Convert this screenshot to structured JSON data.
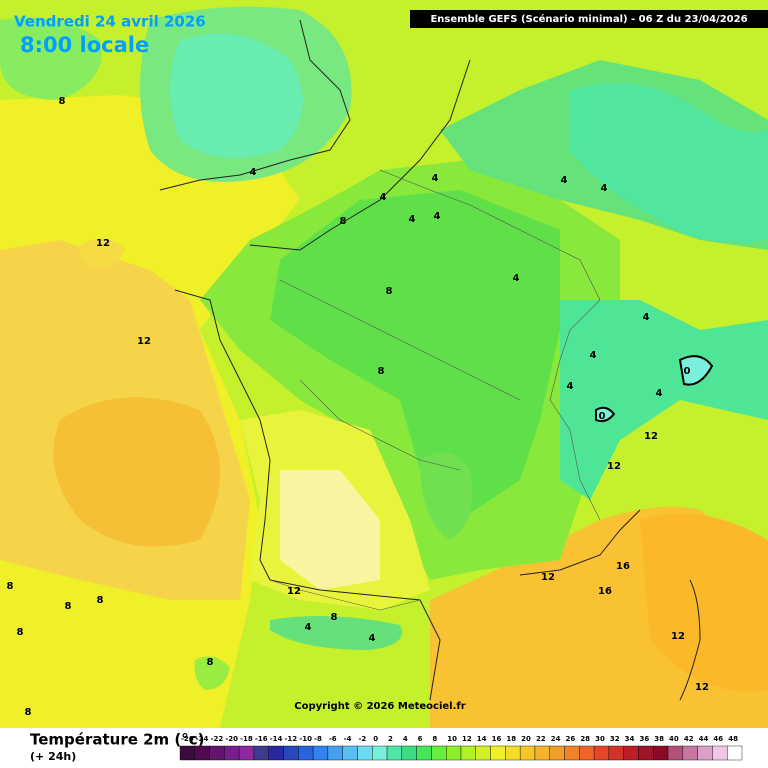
{
  "header": {
    "date": "Vendredi 24 avril 2026",
    "time": "8:00 locale",
    "run": "Ensemble GEFS  (Scénario minimal) - 06 Z du 23/04/2026"
  },
  "copyright": "Copyright © 2026 Meteociel.fr",
  "contour_labels": [
    "8",
    "4",
    "12",
    "12",
    "8",
    "4",
    "4",
    "4",
    "4",
    "4",
    "4",
    "4",
    "8",
    "8",
    "4",
    "4",
    "4",
    "4",
    "0",
    "0",
    "12",
    "12",
    "12",
    "16",
    "16",
    "12",
    "8",
    "4",
    "4",
    "8",
    "8",
    "8",
    "8",
    "8",
    "12",
    "12",
    "8"
  ],
  "legend": {
    "title": "Température 2m (°c)",
    "subtitle": "(+ 24h)",
    "ticks": [
      -26,
      -24,
      -22,
      -20,
      -18,
      -16,
      -14,
      -12,
      -10,
      -8,
      -6,
      -4,
      -2,
      0,
      2,
      4,
      6,
      8,
      10,
      12,
      14,
      16,
      18,
      20,
      22,
      24,
      26,
      28,
      30,
      32,
      34,
      36,
      38,
      40,
      42,
      44,
      46,
      48
    ],
    "colors": [
      "#3c0a3c",
      "#500a50",
      "#64146e",
      "#781e8c",
      "#8c28a0",
      "#3c3c8c",
      "#2828a0",
      "#2846be",
      "#2864dc",
      "#3282f0",
      "#46a0f0",
      "#5abef0",
      "#6edcf0",
      "#78f0dc",
      "#50e6aa",
      "#3cdc82",
      "#46e65a",
      "#64f03c",
      "#8cf028",
      "#b4f028",
      "#d2f028",
      "#f0f028",
      "#f5dc28",
      "#f5c828",
      "#f5b428",
      "#f0a028",
      "#f08228",
      "#f06428",
      "#e64628",
      "#d23228",
      "#be1e28",
      "#a01428",
      "#8c0a28",
      "#b45078",
      "#c878a0",
      "#dca0c8",
      "#f0c8e6",
      "#ffffff"
    ]
  }
}
